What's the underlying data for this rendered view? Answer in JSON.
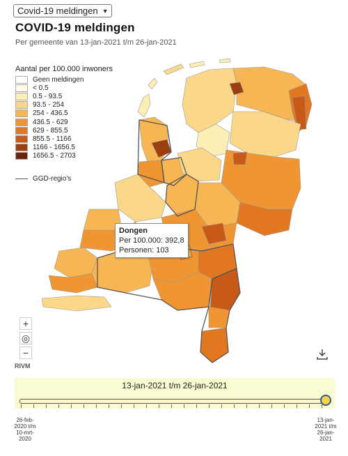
{
  "header": {
    "select_value": "Covid-19 meldingen",
    "title": "COVID-19 meldingen",
    "subtitle": "Per gemeente van 13-jan-2021 t/m 26-jan-2021"
  },
  "legend": {
    "title": "Aantal per 100.000 inwoners",
    "items": [
      {
        "label": "Geen meldingen",
        "color": "#ffffff"
      },
      {
        "label": "< 0.5",
        "color": "#fffbe6"
      },
      {
        "label": "0.5 - 93.5",
        "color": "#fdeeb6"
      },
      {
        "label": "93.5 - 254",
        "color": "#fbd889"
      },
      {
        "label": "254 - 436.5",
        "color": "#f6b653"
      },
      {
        "label": "436.5 - 629",
        "color": "#ef9532"
      },
      {
        "label": "629 - 855.5",
        "color": "#e27722"
      },
      {
        "label": "855.5 - 1166",
        "color": "#c75a18"
      },
      {
        "label": "1166 - 1656.5",
        "color": "#9c3f10"
      },
      {
        "label": "1656.5 - 2703",
        "color": "#6b2608"
      }
    ],
    "ggd_label": "GGD-regio's"
  },
  "tooltip": {
    "name": "Dongen",
    "per100k": "Per 100.000: 392,8",
    "persons": "Personen: 103"
  },
  "map": {
    "attribution": "RIVM"
  },
  "timeline": {
    "range_label": "13-jan-2021 t/m 26-jan-2021",
    "start_label": [
      "26-feb-",
      "2020 t/m",
      "10-mrt-",
      "2020"
    ],
    "end_label": [
      "13-jan-",
      "2021 t/m",
      "26-jan-",
      "2021"
    ]
  }
}
